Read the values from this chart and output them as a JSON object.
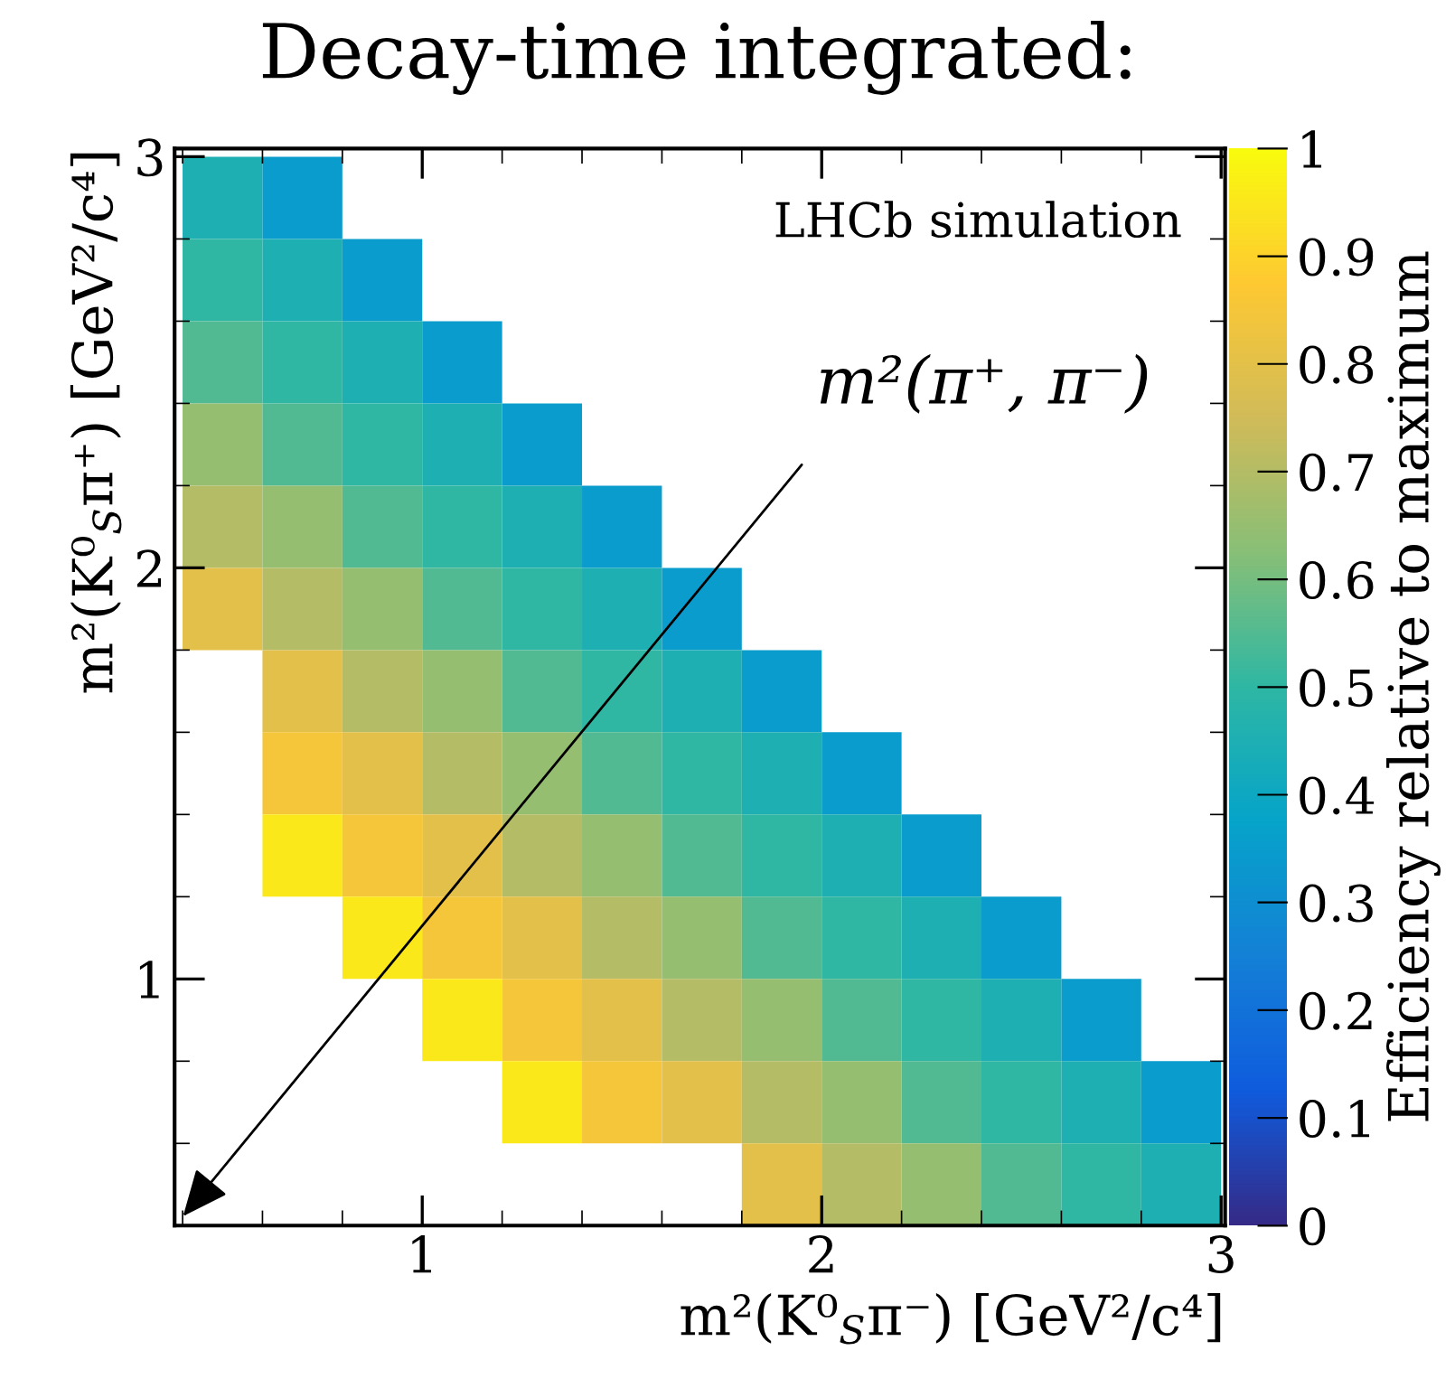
{
  "chart_data": {
    "type": "heatmap",
    "title": "Decay-time integrated:",
    "xlabel": "m²(K⁰$_{S}$π⁻) [GeV²/c⁴]",
    "ylabel": "m²(K⁰$_{S}$π⁺) [GeV²/c⁴]",
    "clabel": "Efficiency relative to maximum",
    "annotations": [
      "LHCb simulation",
      "m²(π⁺, π⁻)"
    ],
    "x": [
      0.5,
      0.7,
      0.9,
      1.1,
      1.3,
      1.5,
      1.7,
      1.9,
      2.1,
      2.3,
      2.5,
      2.7,
      2.9
    ],
    "y": [
      2.9,
      2.7,
      2.5,
      2.3,
      2.1,
      1.9,
      1.7,
      1.5,
      1.3,
      1.1,
      0.9,
      0.7,
      0.5
    ],
    "cells": [
      [
        0.45,
        0.35,
        null,
        null,
        null,
        null,
        null,
        null,
        null,
        null,
        null,
        null,
        null
      ],
      [
        0.5,
        0.45,
        0.35,
        null,
        null,
        null,
        null,
        null,
        null,
        null,
        null,
        null,
        null
      ],
      [
        0.55,
        0.5,
        0.45,
        0.35,
        null,
        null,
        null,
        null,
        null,
        null,
        null,
        null,
        null
      ],
      [
        0.65,
        0.55,
        0.5,
        0.45,
        0.35,
        null,
        null,
        null,
        null,
        null,
        null,
        null,
        null
      ],
      [
        0.7,
        0.65,
        0.55,
        0.5,
        0.45,
        0.35,
        null,
        null,
        null,
        null,
        null,
        null,
        null
      ],
      [
        0.8,
        0.7,
        0.65,
        0.55,
        0.5,
        0.45,
        0.35,
        null,
        null,
        null,
        null,
        null,
        null
      ],
      [
        null,
        0.8,
        0.7,
        0.65,
        0.55,
        0.5,
        0.45,
        0.35,
        null,
        null,
        null,
        null,
        null
      ],
      [
        null,
        0.85,
        0.8,
        0.7,
        0.65,
        0.55,
        0.5,
        0.45,
        0.35,
        null,
        null,
        null,
        null
      ],
      [
        null,
        0.95,
        0.85,
        0.8,
        0.7,
        0.65,
        0.55,
        0.5,
        0.45,
        0.35,
        null,
        null,
        null
      ],
      [
        null,
        null,
        0.95,
        0.85,
        0.8,
        0.7,
        0.65,
        0.55,
        0.5,
        0.45,
        0.35,
        null,
        null
      ],
      [
        null,
        null,
        null,
        0.95,
        0.85,
        0.8,
        0.7,
        0.65,
        0.55,
        0.5,
        0.45,
        0.35,
        null
      ],
      [
        null,
        null,
        null,
        null,
        0.95,
        0.85,
        0.8,
        0.7,
        0.65,
        0.55,
        0.5,
        0.45,
        0.35
      ],
      [
        null,
        null,
        null,
        null,
        null,
        null,
        null,
        0.8,
        0.7,
        0.65,
        0.55,
        0.5,
        0.45
      ]
    ],
    "xlim": [
      0.38,
      3.01
    ],
    "ylim": [
      0.4,
      3.02
    ],
    "xticks": [
      1,
      2,
      3
    ],
    "yticks": [
      1,
      2,
      3
    ],
    "clim": [
      0,
      1
    ],
    "cticks": [
      0,
      0.1,
      0.2,
      0.3,
      0.4,
      0.5,
      0.6,
      0.7,
      0.8,
      0.9,
      1
    ],
    "grid": false,
    "legend": false
  }
}
